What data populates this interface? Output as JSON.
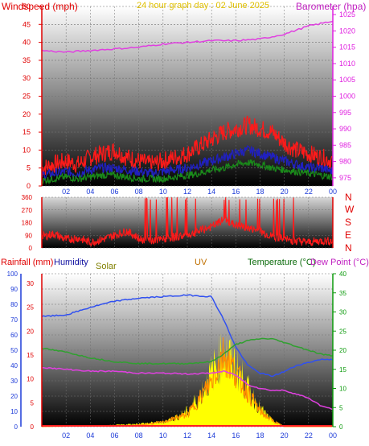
{
  "charts": {
    "top": {
      "left_label": "Windspeed (mph)",
      "center_label": "24 hour graph day : 02 June 2025",
      "right_label": "Barometer (hpa)"
    },
    "mid": {
      "dir_labels": [
        "N",
        "W",
        "S",
        "E",
        "N"
      ]
    },
    "bottom": {
      "labels": {
        "rain": "Rainfall (mm)",
        "humidity": "Humidity",
        "solar": "Solar",
        "uv": "UV",
        "temperature": "Temperature (°C)",
        "dewpoint": "Dew Point (°C)"
      }
    }
  },
  "colors": {
    "frame": "#ffffff",
    "grid": "#707070",
    "axis_red": "#e00000",
    "axis_blue": "#1d3bd8",
    "axis_green": "#0d9b0d",
    "magenta": "#e020e0",
    "wind_gust": "#ff1a1a",
    "wind_avg": "#2020c0",
    "wind_low": "#1a8a1a",
    "barometer": "#e040e0",
    "direction": "#ff1a1a",
    "humidity": "#3050f0",
    "temperature": "#30a030",
    "dewpoint": "#e040e0",
    "solar": "#ffff00",
    "uv": "#ff8c00",
    "rain": "#ff2020",
    "label_solar": "#808000",
    "label_uv": "#c07000",
    "label_temp": "#0a6a0a",
    "label_top_center": "#e0c000",
    "label_humidity": "#1010a0"
  },
  "chart_data": [
    {
      "type": "line",
      "name": "wind-barometer",
      "x_ticks": [
        "02",
        "04",
        "06",
        "08",
        "10",
        "12",
        "14",
        "16",
        "18",
        "20",
        "22",
        "00"
      ],
      "y_left_ticks": [
        0,
        5,
        10,
        15,
        20,
        25,
        30,
        35,
        40,
        45,
        50
      ],
      "y_left_range": [
        0,
        50
      ],
      "y_right_ticks": [
        975,
        980,
        985,
        990,
        995,
        1000,
        1005,
        1010,
        1015,
        1020,
        1025
      ],
      "y_right_range": [
        972.5,
        1027.5
      ],
      "x_range": [
        0,
        24
      ],
      "series": [
        {
          "key": "gust",
          "x": [
            0,
            1,
            2,
            3,
            4,
            5,
            6,
            7,
            8,
            9,
            10,
            11,
            12,
            13,
            14,
            15,
            16,
            17,
            18,
            19,
            20,
            21,
            22,
            23,
            24
          ],
          "values": [
            5,
            6,
            7,
            6,
            8,
            9,
            10,
            8,
            7,
            6,
            7,
            8,
            9,
            11,
            13,
            15,
            16,
            17,
            16,
            15,
            12,
            10,
            9,
            8,
            7
          ]
        },
        {
          "key": "avg",
          "x": [
            0,
            1,
            2,
            3,
            4,
            5,
            6,
            7,
            8,
            9,
            10,
            11,
            12,
            13,
            14,
            15,
            16,
            17,
            18,
            19,
            20,
            21,
            22,
            23,
            24
          ],
          "values": [
            3,
            3.5,
            4,
            3.5,
            4.5,
            5,
            5,
            4.5,
            4,
            3.5,
            4,
            4.5,
            5,
            6,
            7,
            8,
            9,
            10,
            9,
            8,
            7,
            6,
            5,
            5,
            4
          ]
        },
        {
          "key": "low",
          "x": [
            0,
            1,
            2,
            3,
            4,
            5,
            6,
            7,
            8,
            9,
            10,
            11,
            12,
            13,
            14,
            15,
            16,
            17,
            18,
            19,
            20,
            21,
            22,
            23,
            24
          ],
          "values": [
            1.5,
            2,
            2.5,
            2,
            2.5,
            3,
            3,
            2.5,
            2,
            2,
            2,
            2.5,
            3,
            3.5,
            4.5,
            5,
            6,
            6.5,
            6,
            5,
            4.5,
            4,
            3.5,
            3,
            2.5
          ]
        },
        {
          "key": "barometer",
          "axis": "right",
          "x": [
            0,
            2,
            4,
            6,
            8,
            10,
            12,
            14,
            16,
            18,
            20,
            22,
            24
          ],
          "values": [
            1014,
            1013.5,
            1014,
            1014.5,
            1015,
            1016,
            1016.5,
            1017,
            1017,
            1017.5,
            1019,
            1021.5,
            1023
          ]
        }
      ]
    },
    {
      "type": "scatter",
      "name": "wind-direction",
      "y_ticks": [
        0,
        90,
        180,
        270,
        360
      ],
      "y_range": [
        0,
        360
      ],
      "x_range": [
        0,
        24
      ],
      "series": [
        {
          "key": "direction",
          "x": [
            0,
            1,
            2,
            3,
            4,
            5,
            6,
            7,
            8,
            9,
            10,
            11,
            12,
            13,
            14,
            15,
            16,
            17,
            18,
            19,
            20,
            21,
            22,
            23,
            24
          ],
          "values": [
            80,
            100,
            60,
            70,
            40,
            60,
            90,
            120,
            70,
            50,
            60,
            80,
            90,
            120,
            150,
            200,
            160,
            140,
            120,
            80,
            60,
            50,
            40,
            50,
            50
          ]
        }
      ]
    },
    {
      "type": "line",
      "name": "rain-humidity-temp",
      "y_rain_ticks": [
        0,
        5,
        10,
        15,
        20,
        25,
        30
      ],
      "y_hum_ticks": [
        0,
        10,
        20,
        30,
        40,
        50,
        60,
        70,
        80,
        90,
        100
      ],
      "y_temp_ticks": [
        0,
        5,
        10,
        15,
        20,
        25,
        30,
        35,
        40
      ],
      "x_range": [
        0,
        24
      ],
      "series": [
        {
          "key": "humidity",
          "axis": "hum",
          "x": [
            0,
            2,
            4,
            6,
            8,
            10,
            12,
            14,
            15,
            16,
            17,
            18,
            19,
            20,
            21,
            22,
            23,
            24
          ],
          "values": [
            72,
            73,
            78,
            82,
            84,
            85,
            86,
            85,
            70,
            52,
            40,
            35,
            33,
            36,
            40,
            42,
            44,
            44
          ]
        },
        {
          "key": "temperature",
          "axis": "temp",
          "x": [
            0,
            2,
            4,
            6,
            8,
            10,
            12,
            14,
            15,
            16,
            17,
            18,
            19,
            20,
            21,
            22,
            23,
            24
          ],
          "values": [
            20.5,
            19.5,
            18,
            17,
            16.5,
            16.5,
            16.5,
            17,
            19,
            21.5,
            22.5,
            23,
            23,
            22,
            21,
            20,
            19,
            18.5
          ]
        },
        {
          "key": "dewpoint",
          "axis": "temp",
          "x": [
            0,
            2,
            4,
            6,
            8,
            10,
            12,
            14,
            15,
            16,
            17,
            18,
            19,
            20,
            21,
            22,
            23,
            24
          ],
          "values": [
            15.5,
            15,
            14.5,
            14.5,
            14,
            14,
            13.8,
            14,
            14.5,
            13.5,
            11,
            10,
            9.5,
            9.5,
            8.5,
            7.5,
            5.5,
            4.5
          ]
        },
        {
          "key": "solar",
          "axis": "hum",
          "x": [
            0,
            4,
            6,
            8,
            10,
            11,
            12,
            13,
            14,
            15,
            16,
            17,
            18,
            19,
            20,
            24
          ],
          "values": [
            0,
            0,
            1,
            2,
            3,
            6,
            10,
            20,
            35,
            50,
            40,
            25,
            12,
            4,
            0,
            0
          ]
        },
        {
          "key": "uv",
          "axis": "hum",
          "x": [
            0,
            8,
            10,
            12,
            13,
            14,
            15,
            16,
            17,
            18,
            19,
            20,
            24
          ],
          "values": [
            0,
            1,
            3,
            8,
            18,
            30,
            48,
            35,
            22,
            10,
            4,
            0,
            0
          ]
        },
        {
          "key": "rain",
          "axis": "rain",
          "x": [
            0,
            24
          ],
          "values": [
            0,
            0
          ]
        }
      ]
    }
  ]
}
